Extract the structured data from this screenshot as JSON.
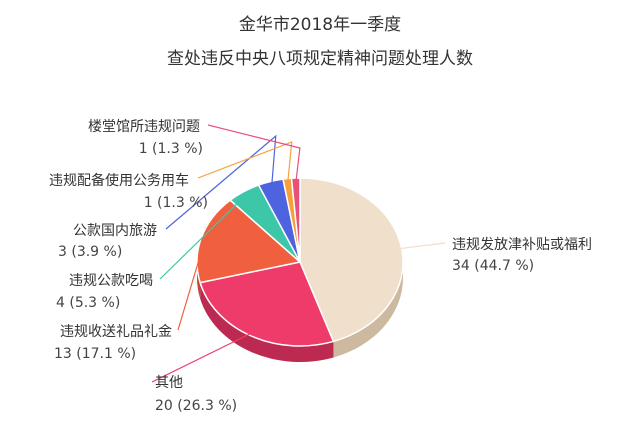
{
  "chart_data": {
    "type": "pie",
    "title": "金华市2018年一季度",
    "subtitle": "查处违反中央八项规定精神问题处理人数",
    "slices": [
      {
        "label": "违规发放津补贴或福利",
        "value": 34,
        "pct": "34 (44.7 %)",
        "color": "#F0DFCB",
        "side": "#CDB8A0"
      },
      {
        "label": "其他",
        "value": 20,
        "pct": "20 (26.3 %)",
        "color": "#EE3B6A",
        "side": "#BC2A52"
      },
      {
        "label": "违规收送礼品礼金",
        "value": 13,
        "pct": "13 (17.1 %)",
        "color": "#F0603F",
        "side": "#C24A30"
      },
      {
        "label": "违规公款吃喝",
        "value": 4,
        "pct": "4 (5.3 %)",
        "color": "#3CC8A8",
        "side": "#2E9C83"
      },
      {
        "label": "公款国内旅游",
        "value": 3,
        "pct": "3 (3.9 %)",
        "color": "#4E63E0",
        "side": "#3B4CB0"
      },
      {
        "label": "违规配备使用公务用车",
        "value": 1,
        "pct": "1 (1.3 %)",
        "color": "#F5A03A",
        "side": "#C67F2C"
      },
      {
        "label": "楼堂馆所违规问题",
        "value": 1,
        "pct": "1 (1.3 %)",
        "color": "#E8507C",
        "side": "#B53D60"
      }
    ]
  }
}
